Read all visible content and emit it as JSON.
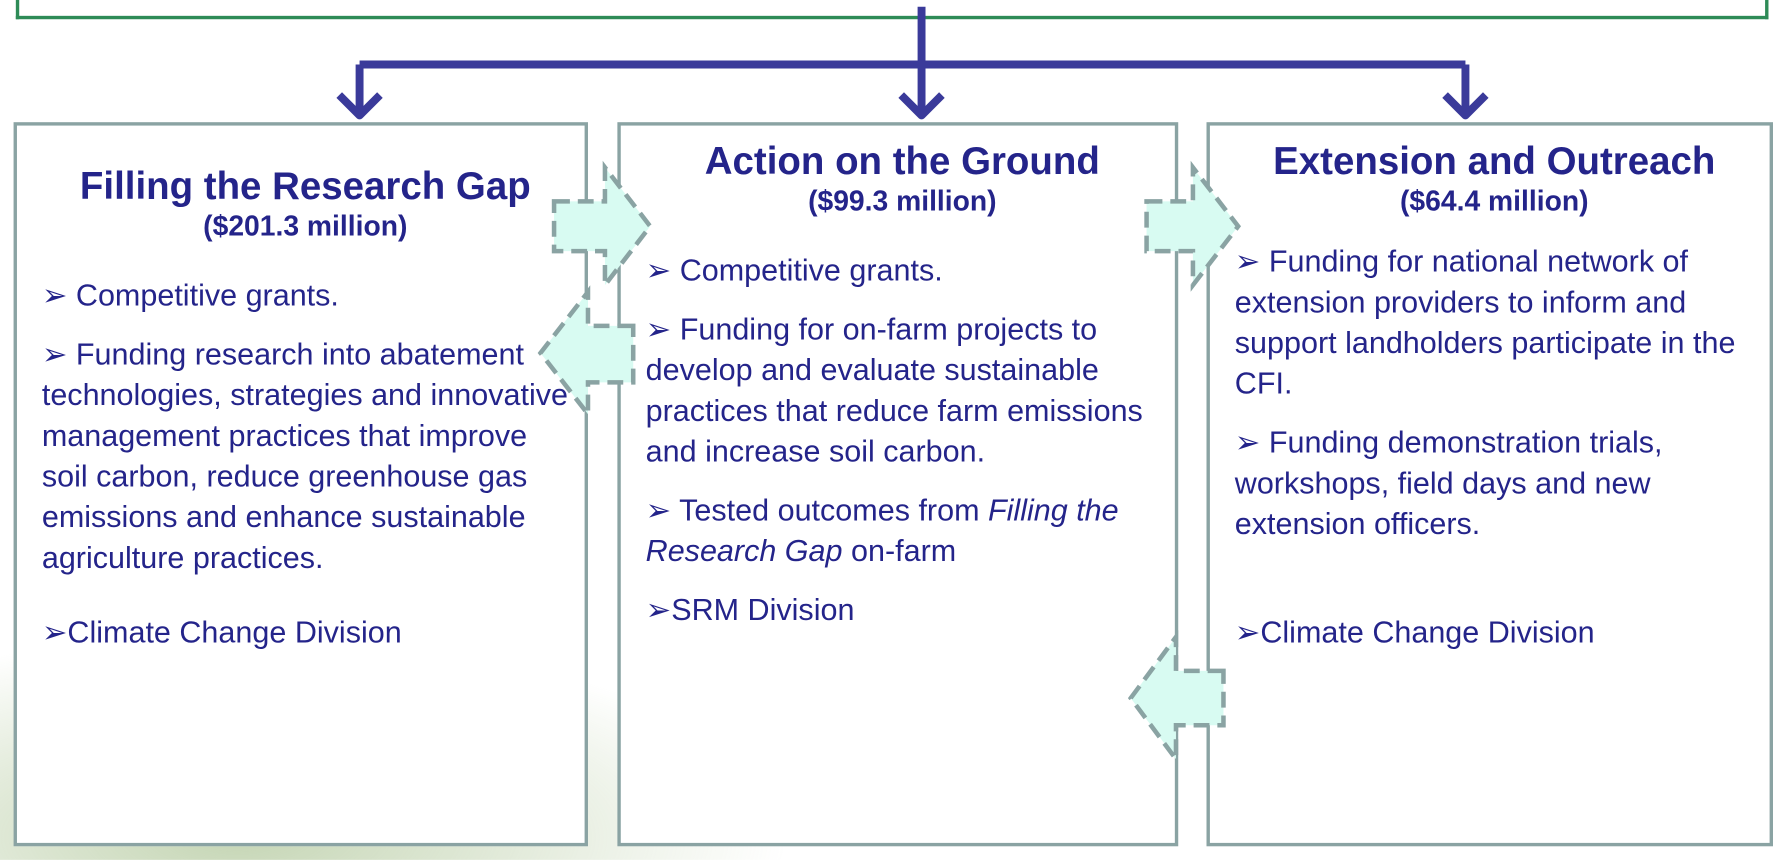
{
  "columns": [
    {
      "title": "Filling the Research Gap",
      "amount": "($201.3 million)",
      "items": [
        [
          {
            "text": "➢ Competitive grants.",
            "italic": false
          }
        ],
        [
          {
            "text": "➢ Funding research into abatement technologies, strategies and innovative management practices that improve soil carbon, reduce greenhouse gas emissions and enhance sustainable agriculture practices.",
            "italic": false
          }
        ],
        [
          {
            "text": "➢Climate Change Division",
            "italic": false
          }
        ]
      ]
    },
    {
      "title": "Action on the Ground",
      "amount": "($99.3 million)",
      "items": [
        [
          {
            "text": "➢ Competitive grants.",
            "italic": false
          }
        ],
        [
          {
            "text": "➢ Funding for on-farm projects to develop and evaluate sustainable practices that reduce farm emissions and increase soil carbon.",
            "italic": false
          }
        ],
        [
          {
            "text": "➢ Tested outcomes from ",
            "italic": false
          },
          {
            "text": "Filling the Research Gap",
            "italic": true
          },
          {
            "text": " on-farm",
            "italic": false
          }
        ],
        [
          {
            "text": "➢SRM Division",
            "italic": false
          }
        ]
      ]
    },
    {
      "title": "Extension and Outreach",
      "amount": "($64.4 million)",
      "items": [
        [
          {
            "text": "➢ Funding for national network of extension providers to inform and support landholders participate in the CFI.",
            "italic": false
          }
        ],
        [
          {
            "text": "➢ Funding demonstration trials, workshops, field days and new extension officers.",
            "italic": false
          }
        ],
        [
          {
            "text": "➢Climate Change Division",
            "italic": false
          }
        ]
      ]
    }
  ]
}
